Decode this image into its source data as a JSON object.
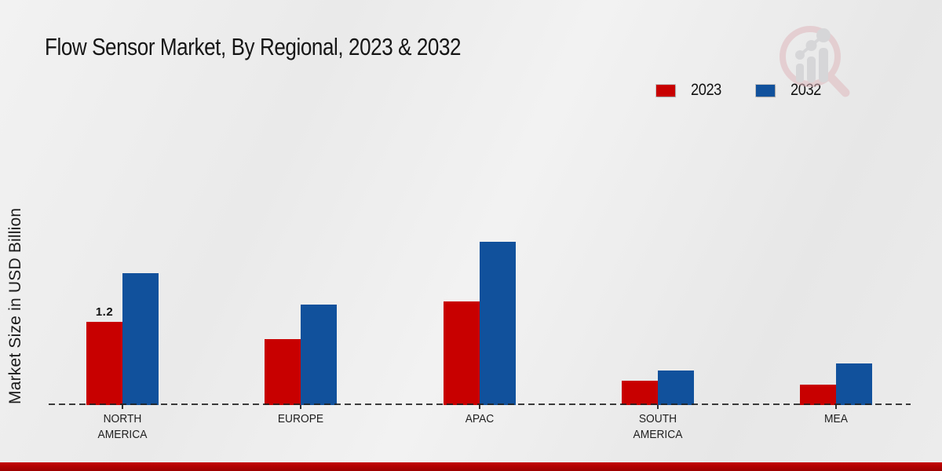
{
  "chart_data": {
    "type": "bar",
    "title": "Flow Sensor Market, By Regional, 2023 & 2032",
    "xlabel": "",
    "ylabel": "Market Size in USD Billion",
    "categories": [
      "NORTH AMERICA",
      "EUROPE",
      "APAC",
      "SOUTH AMERICA",
      "MEA"
    ],
    "series": [
      {
        "name": "2023",
        "color": "#c80000",
        "values": [
          1.2,
          0.95,
          1.5,
          0.35,
          0.3
        ]
      },
      {
        "name": "2032",
        "color": "#11519c",
        "values": [
          1.9,
          1.45,
          2.35,
          0.5,
          0.6
        ]
      }
    ],
    "data_label": {
      "series_index": 0,
      "category_index": 0,
      "text": "1.2"
    },
    "ylim": [
      0,
      2.6
    ],
    "grid": false,
    "legend_position": "top-right",
    "baseline_style": "dashed"
  },
  "colors": {
    "accent_red": "#c80000",
    "accent_blue": "#11519c",
    "footer_strip": "#b00000",
    "baseline": "#222222"
  },
  "watermark_icon": "magnifier-bar-chart-logo"
}
